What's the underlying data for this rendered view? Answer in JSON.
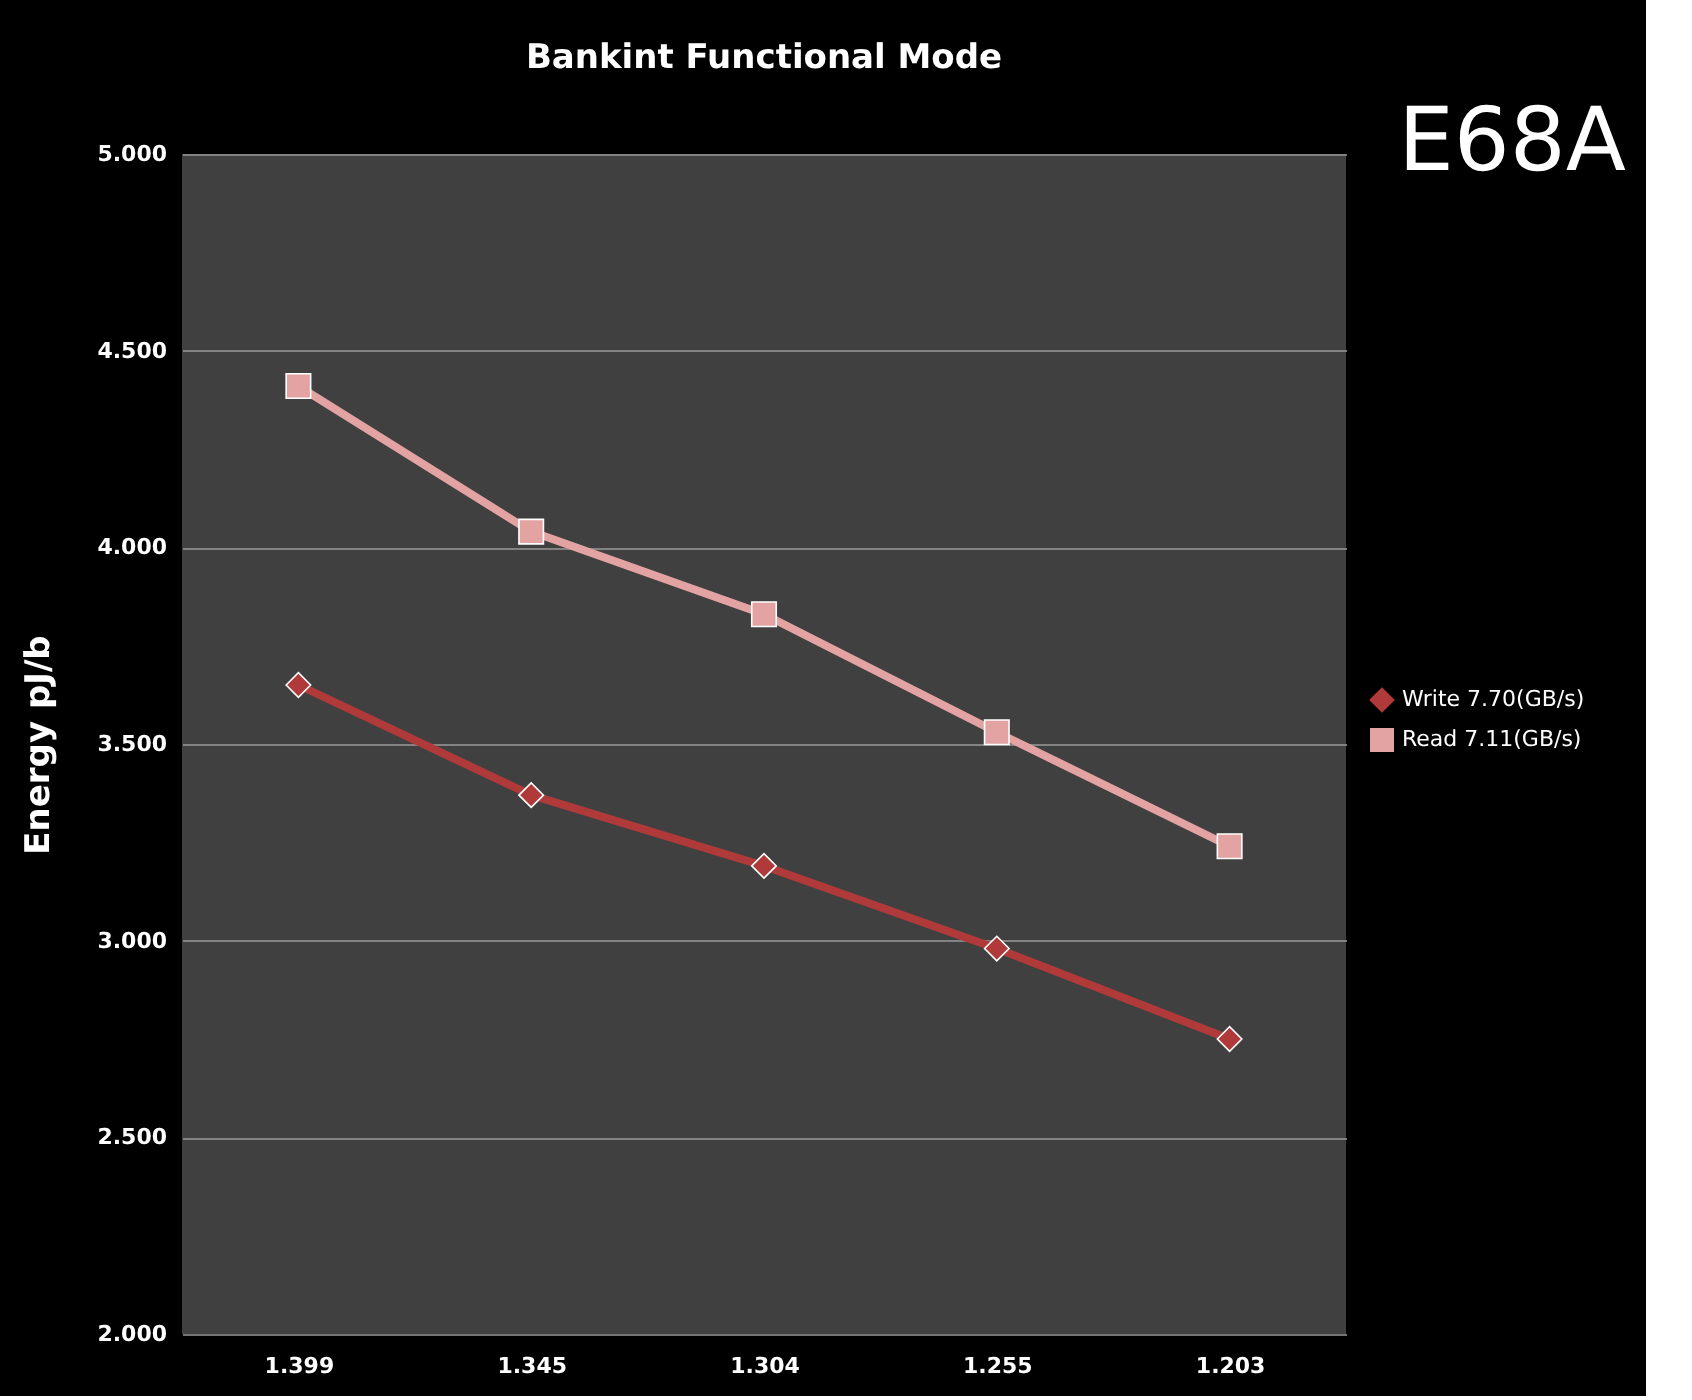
{
  "chart_data": {
    "type": "line",
    "title": "Bankint Functional Mode",
    "ylabel": "Energy pJ/b",
    "annotations": [
      "E68A"
    ],
    "categories": [
      "1.399",
      "1.345",
      "1.304",
      "1.255",
      "1.203"
    ],
    "series": [
      {
        "name": "Write 7.70(GB/s)",
        "color": "#b03a3a",
        "marker": "diamond",
        "values": [
          3.65,
          3.37,
          3.19,
          2.98,
          2.75
        ]
      },
      {
        "name": "Read 7.11(GB/s)",
        "color": "#e3a3a3",
        "marker": "square",
        "values": [
          4.41,
          4.04,
          3.83,
          3.53,
          3.24
        ]
      }
    ],
    "ylim": [
      2,
      5
    ],
    "yticks": [
      {
        "value": 2,
        "label": "2.000"
      },
      {
        "value": 2.5,
        "label": "2.500"
      },
      {
        "value": 3,
        "label": "3.000"
      },
      {
        "value": 3.5,
        "label": "3.500"
      },
      {
        "value": 4,
        "label": "4.000"
      },
      {
        "value": 4.5,
        "label": "4.500"
      },
      {
        "value": 5,
        "label": "5.000"
      }
    ],
    "grid": "y",
    "legend": "right",
    "line_style": "solid"
  }
}
